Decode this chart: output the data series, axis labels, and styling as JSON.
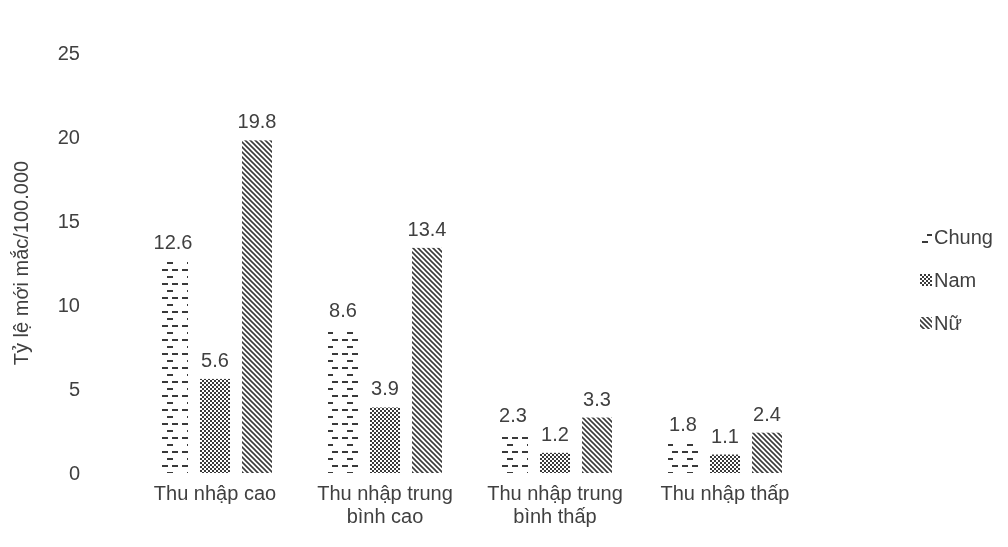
{
  "chart_data": {
    "type": "bar",
    "ylabel": "Tỷ lệ mới mắc/100.000",
    "categories": [
      "Thu nhập cao",
      "Thu nhập trung bình cao",
      "Thu nhập trung bình thấp",
      "Thu nhập thấp"
    ],
    "series": [
      {
        "name": "Chung",
        "color": "#3a3a3a",
        "values": [
          12.6,
          8.6,
          2.3,
          1.8
        ]
      },
      {
        "name": "Nam",
        "color": "#3a3a3a",
        "values": [
          5.6,
          3.9,
          1.2,
          1.1
        ]
      },
      {
        "name": "Nữ",
        "color": "#3a3a3a",
        "values": [
          19.8,
          13.4,
          3.3,
          2.4
        ]
      }
    ],
    "ylim": [
      0,
      25
    ],
    "yticks": [
      0,
      5,
      10,
      15,
      20,
      25
    ],
    "data_labels": true,
    "legend": "right",
    "grid": false
  }
}
